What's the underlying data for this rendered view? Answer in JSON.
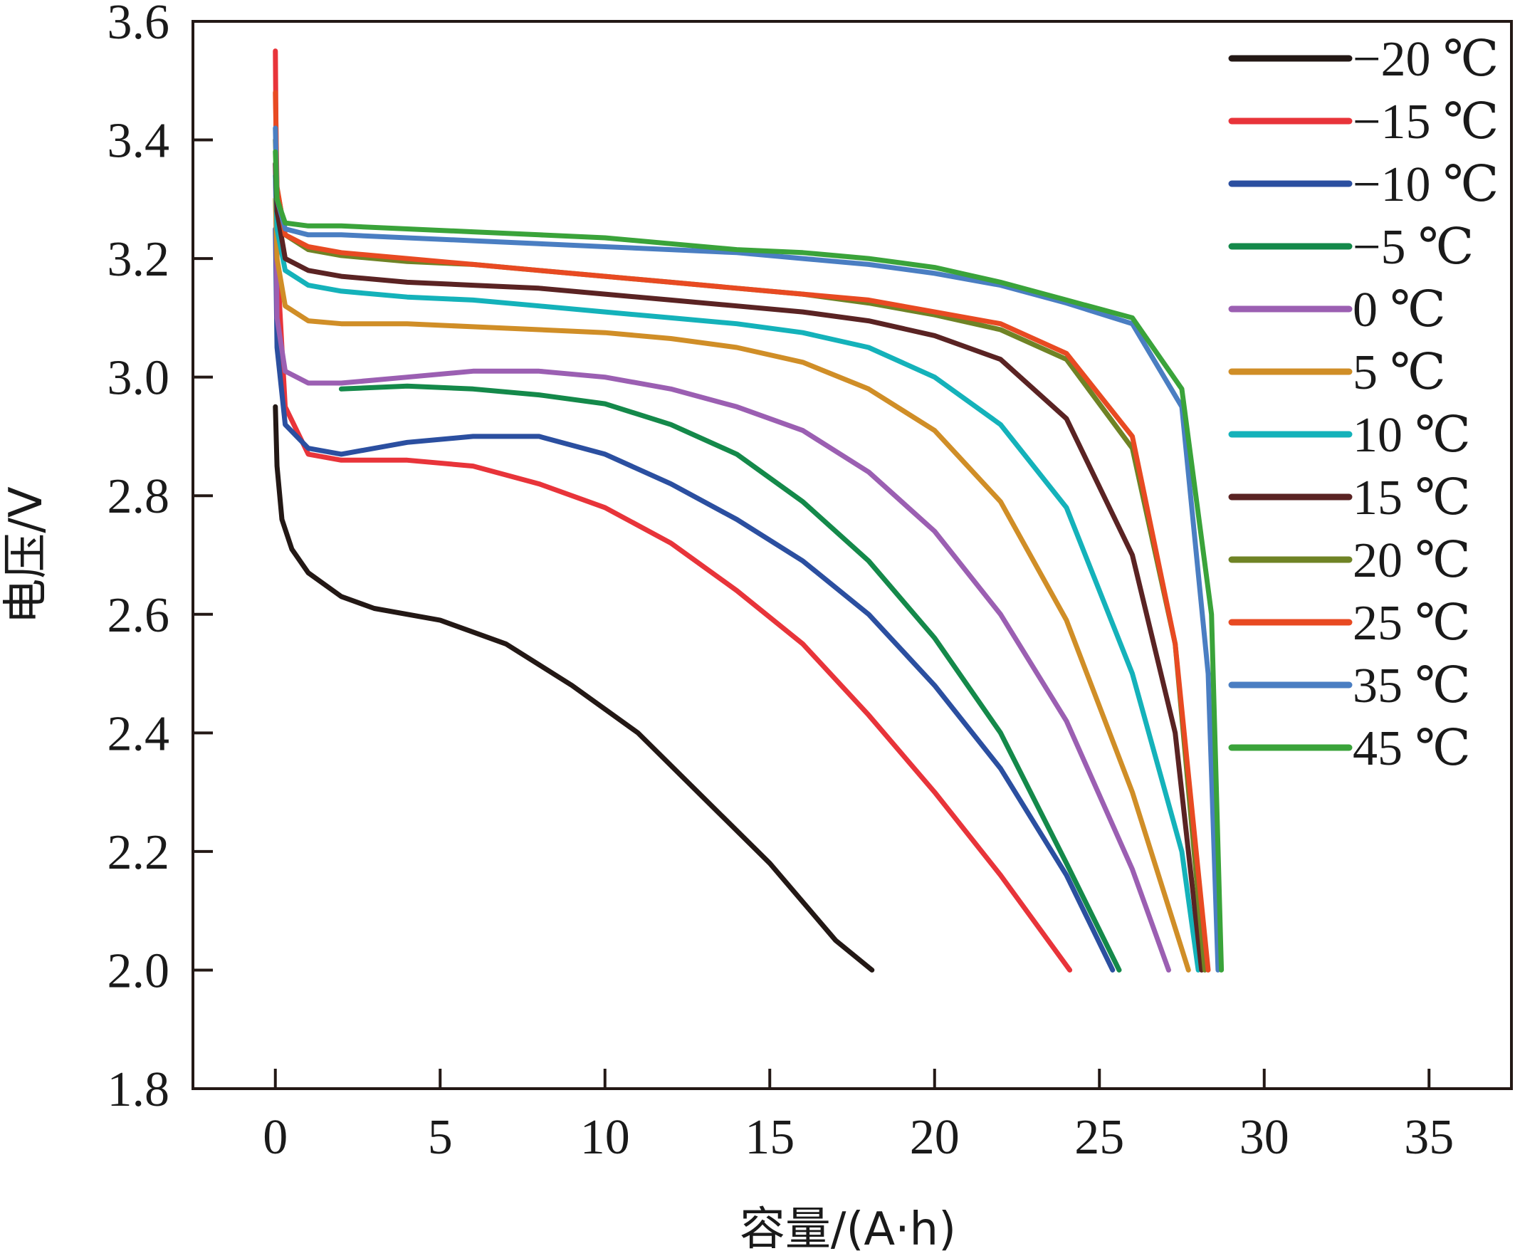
{
  "chart_data": {
    "type": "line",
    "xlabel": "容量/(A·h)",
    "ylabel": "电压/V",
    "xlim": [
      -2.5,
      37.5
    ],
    "ylim": [
      1.8,
      3.6
    ],
    "xticks": [
      0,
      5,
      10,
      15,
      20,
      25,
      30,
      35
    ],
    "yticks": [
      1.8,
      2.0,
      2.2,
      2.4,
      2.6,
      2.8,
      3.0,
      3.2,
      3.4,
      3.6
    ],
    "xtick_labels": [
      "0",
      "5",
      "10",
      "15",
      "20",
      "25",
      "30",
      "35"
    ],
    "ytick_labels": [
      "1.8",
      "2.0",
      "2.2",
      "2.4",
      "2.6",
      "2.8",
      "3.0",
      "3.2",
      "3.4",
      "3.6"
    ],
    "grid": false,
    "legend_position": "top-right",
    "series": [
      {
        "name": "−20 ℃",
        "color": "#231815",
        "x": [
          0,
          0.05,
          0.2,
          0.5,
          1,
          2,
          3,
          5,
          7,
          9,
          11,
          13,
          15,
          17,
          18.1
        ],
        "y": [
          2.95,
          2.85,
          2.76,
          2.71,
          2.67,
          2.63,
          2.61,
          2.59,
          2.55,
          2.48,
          2.4,
          2.29,
          2.18,
          2.05,
          2.0
        ]
      },
      {
        "name": "−15 ℃",
        "color": "#e8343a",
        "x": [
          0,
          0.05,
          0.3,
          1,
          2,
          4,
          6,
          8,
          10,
          12,
          14,
          16,
          18,
          20,
          22,
          24.1
        ],
        "y": [
          3.55,
          3.2,
          2.95,
          2.87,
          2.86,
          2.86,
          2.85,
          2.82,
          2.78,
          2.72,
          2.64,
          2.55,
          2.43,
          2.3,
          2.16,
          2.0
        ]
      },
      {
        "name": "−10 ℃",
        "color": "#2b4fa0",
        "x": [
          0,
          0.05,
          0.3,
          1,
          2,
          4,
          6,
          8,
          10,
          12,
          14,
          16,
          18,
          20,
          22,
          24,
          25.4
        ],
        "y": [
          3.25,
          3.05,
          2.92,
          2.88,
          2.87,
          2.89,
          2.9,
          2.9,
          2.87,
          2.82,
          2.76,
          2.69,
          2.6,
          2.48,
          2.34,
          2.16,
          2.0
        ]
      },
      {
        "name": "−5 ℃",
        "color": "#14894a",
        "x": [
          2,
          4,
          6,
          8,
          10,
          12,
          14,
          16,
          18,
          20,
          22,
          24,
          25.6
        ],
        "y": [
          2.98,
          2.985,
          2.98,
          2.97,
          2.955,
          2.92,
          2.87,
          2.79,
          2.69,
          2.56,
          2.4,
          2.18,
          2.0
        ]
      },
      {
        "name": "0 ℃",
        "color": "#9b5fb2",
        "x": [
          0,
          0.05,
          0.3,
          1,
          2,
          4,
          6,
          8,
          10,
          12,
          14,
          16,
          18,
          20,
          22,
          24,
          26,
          27.1
        ],
        "y": [
          3.36,
          3.1,
          3.01,
          2.99,
          2.99,
          3.0,
          3.01,
          3.01,
          3.0,
          2.98,
          2.95,
          2.91,
          2.84,
          2.74,
          2.6,
          2.42,
          2.17,
          2.0
        ]
      },
      {
        "name": "5 ℃",
        "color": "#d08e27",
        "x": [
          0,
          0.05,
          0.3,
          1,
          2,
          4,
          6,
          8,
          10,
          12,
          14,
          16,
          18,
          20,
          22,
          24,
          26,
          27.7
        ],
        "y": [
          3.3,
          3.2,
          3.12,
          3.095,
          3.09,
          3.09,
          3.085,
          3.08,
          3.075,
          3.065,
          3.05,
          3.025,
          2.98,
          2.91,
          2.79,
          2.59,
          2.3,
          2.0
        ]
      },
      {
        "name": "10 ℃",
        "color": "#14b2ba",
        "x": [
          0,
          0.05,
          0.3,
          1,
          2,
          4,
          6,
          8,
          10,
          12,
          14,
          16,
          18,
          20,
          22,
          24,
          26,
          27.5,
          28.0
        ],
        "y": [
          3.34,
          3.25,
          3.18,
          3.155,
          3.145,
          3.135,
          3.13,
          3.12,
          3.11,
          3.1,
          3.09,
          3.075,
          3.05,
          3.0,
          2.92,
          2.78,
          2.5,
          2.2,
          2.0
        ]
      },
      {
        "name": "15 ℃",
        "color": "#5a2323",
        "x": [
          0,
          0.05,
          0.3,
          1,
          2,
          4,
          6,
          8,
          10,
          12,
          14,
          16,
          18,
          20,
          22,
          24,
          26,
          27.3,
          28.1
        ],
        "y": [
          3.36,
          3.28,
          3.2,
          3.18,
          3.17,
          3.16,
          3.155,
          3.15,
          3.14,
          3.13,
          3.12,
          3.11,
          3.095,
          3.07,
          3.03,
          2.93,
          2.7,
          2.4,
          2.0
        ]
      },
      {
        "name": "20 ℃",
        "color": "#6f8325",
        "x": [
          0,
          0.05,
          0.3,
          1,
          2,
          4,
          6,
          8,
          10,
          12,
          14,
          16,
          18,
          20,
          22,
          24,
          26,
          27.3,
          28.2
        ],
        "y": [
          3.4,
          3.32,
          3.24,
          3.215,
          3.205,
          3.195,
          3.19,
          3.18,
          3.17,
          3.16,
          3.15,
          3.14,
          3.125,
          3.105,
          3.08,
          3.03,
          2.88,
          2.55,
          2.0
        ]
      },
      {
        "name": "25 ℃",
        "color": "#e84a22",
        "x": [
          0,
          0.05,
          0.3,
          1,
          2,
          4,
          6,
          8,
          10,
          12,
          14,
          16,
          18,
          20,
          22,
          24,
          26,
          27.3,
          28.3
        ],
        "y": [
          3.48,
          3.32,
          3.24,
          3.22,
          3.21,
          3.2,
          3.19,
          3.18,
          3.17,
          3.16,
          3.15,
          3.14,
          3.13,
          3.11,
          3.09,
          3.04,
          2.9,
          2.55,
          2.0
        ]
      },
      {
        "name": "35 ℃",
        "color": "#4a7ec2",
        "x": [
          0,
          0.05,
          0.3,
          1,
          2,
          4,
          6,
          8,
          10,
          12,
          14,
          16,
          18,
          20,
          22,
          24,
          26,
          27.5,
          28.3,
          28.6
        ],
        "y": [
          3.42,
          3.3,
          3.25,
          3.24,
          3.24,
          3.235,
          3.23,
          3.225,
          3.22,
          3.215,
          3.21,
          3.2,
          3.19,
          3.175,
          3.155,
          3.125,
          3.09,
          2.95,
          2.5,
          2.0
        ]
      },
      {
        "name": "45 ℃",
        "color": "#3aa33a",
        "x": [
          0,
          0.05,
          0.3,
          1,
          2,
          4,
          6,
          8,
          10,
          12,
          14,
          16,
          18,
          20,
          22,
          24,
          26,
          27.5,
          28.4,
          28.7
        ],
        "y": [
          3.38,
          3.3,
          3.26,
          3.255,
          3.255,
          3.25,
          3.245,
          3.24,
          3.235,
          3.225,
          3.215,
          3.21,
          3.2,
          3.185,
          3.16,
          3.13,
          3.1,
          2.98,
          2.6,
          2.0
        ]
      }
    ]
  }
}
